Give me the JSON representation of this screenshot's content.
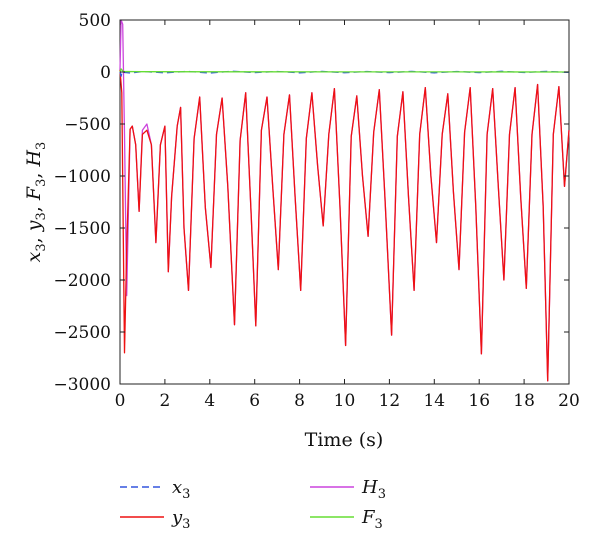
{
  "chart_data": {
    "type": "line",
    "title": "",
    "xlabel": "Time (s)",
    "ylabel_parts": {
      "vars": [
        "x",
        "y",
        "F",
        "H"
      ],
      "sub": "3"
    },
    "xlim": [
      0,
      20
    ],
    "ylim": [
      -3000,
      500
    ],
    "xticks": [
      0,
      2,
      4,
      6,
      8,
      10,
      12,
      14,
      16,
      18,
      20
    ],
    "yticks": [
      500,
      0,
      -500,
      -1000,
      -1500,
      -2000,
      -2500,
      -3000
    ],
    "grid": false,
    "legend_position": "bottom",
    "series": [
      {
        "name": "x",
        "sub": "3",
        "color": "#3355dd",
        "dash": "7,4",
        "points": [
          [
            0,
            0
          ],
          [
            0.05,
            -40
          ],
          [
            0.1,
            10
          ],
          [
            0.2,
            -5
          ],
          [
            0.5,
            -10
          ],
          [
            1,
            5
          ],
          [
            2,
            -8
          ],
          [
            3,
            6
          ],
          [
            4,
            -10
          ],
          [
            5,
            8
          ],
          [
            6,
            -6
          ],
          [
            7,
            5
          ],
          [
            8,
            -8
          ],
          [
            9,
            6
          ],
          [
            10,
            -7
          ],
          [
            11,
            5
          ],
          [
            12,
            -6
          ],
          [
            13,
            6
          ],
          [
            14,
            -8
          ],
          [
            15,
            5
          ],
          [
            16,
            -6
          ],
          [
            17,
            7
          ],
          [
            18,
            -5
          ],
          [
            19,
            6
          ],
          [
            20,
            -4
          ]
        ]
      },
      {
        "name": "y",
        "sub": "3",
        "color": "#ee1111",
        "dash": "",
        "points": [
          [
            0,
            20
          ],
          [
            0.08,
            -200
          ],
          [
            0.2,
            -2700
          ],
          [
            0.3,
            -1700
          ],
          [
            0.45,
            -550
          ],
          [
            0.55,
            -520
          ],
          [
            0.7,
            -700
          ],
          [
            0.85,
            -1340
          ],
          [
            1.0,
            -600
          ],
          [
            1.2,
            -560
          ],
          [
            1.4,
            -700
          ],
          [
            1.6,
            -1640
          ],
          [
            1.8,
            -700
          ],
          [
            2.0,
            -520
          ],
          [
            2.15,
            -1920
          ],
          [
            2.3,
            -1200
          ],
          [
            2.55,
            -520
          ],
          [
            2.7,
            -340
          ],
          [
            2.85,
            -1500
          ],
          [
            3.05,
            -2100
          ],
          [
            3.3,
            -640
          ],
          [
            3.55,
            -240
          ],
          [
            3.8,
            -1300
          ],
          [
            4.05,
            -1880
          ],
          [
            4.3,
            -600
          ],
          [
            4.55,
            -250
          ],
          [
            4.8,
            -1100
          ],
          [
            5.1,
            -2430
          ],
          [
            5.35,
            -660
          ],
          [
            5.6,
            -200
          ],
          [
            5.85,
            -1400
          ],
          [
            6.05,
            -2440
          ],
          [
            6.3,
            -560
          ],
          [
            6.55,
            -240
          ],
          [
            6.8,
            -1100
          ],
          [
            7.05,
            -1900
          ],
          [
            7.3,
            -600
          ],
          [
            7.55,
            -220
          ],
          [
            7.8,
            -1200
          ],
          [
            8.05,
            -2100
          ],
          [
            8.3,
            -640
          ],
          [
            8.55,
            -200
          ],
          [
            8.8,
            -900
          ],
          [
            9.05,
            -1480
          ],
          [
            9.3,
            -600
          ],
          [
            9.55,
            -160
          ],
          [
            9.8,
            -1300
          ],
          [
            10.05,
            -2630
          ],
          [
            10.3,
            -620
          ],
          [
            10.55,
            -230
          ],
          [
            10.8,
            -1000
          ],
          [
            11.05,
            -1580
          ],
          [
            11.3,
            -580
          ],
          [
            11.55,
            -170
          ],
          [
            11.8,
            -1200
          ],
          [
            12.1,
            -2530
          ],
          [
            12.35,
            -620
          ],
          [
            12.6,
            -190
          ],
          [
            12.85,
            -1200
          ],
          [
            13.1,
            -2100
          ],
          [
            13.35,
            -600
          ],
          [
            13.6,
            -150
          ],
          [
            13.85,
            -1000
          ],
          [
            14.1,
            -1640
          ],
          [
            14.35,
            -600
          ],
          [
            14.6,
            -210
          ],
          [
            14.85,
            -1150
          ],
          [
            15.1,
            -1900
          ],
          [
            15.35,
            -580
          ],
          [
            15.6,
            -150
          ],
          [
            15.85,
            -1300
          ],
          [
            16.1,
            -2710
          ],
          [
            16.35,
            -600
          ],
          [
            16.6,
            -160
          ],
          [
            16.85,
            -1100
          ],
          [
            17.1,
            -2000
          ],
          [
            17.35,
            -600
          ],
          [
            17.6,
            -150
          ],
          [
            17.85,
            -1200
          ],
          [
            18.1,
            -2080
          ],
          [
            18.35,
            -600
          ],
          [
            18.6,
            -120
          ],
          [
            18.85,
            -1300
          ],
          [
            19.05,
            -2970
          ],
          [
            19.3,
            -600
          ],
          [
            19.55,
            -140
          ],
          [
            19.8,
            -1100
          ],
          [
            20,
            -560
          ]
        ]
      },
      {
        "name": "H",
        "sub": "3",
        "color": "#cc44dd",
        "dash": "",
        "points": [
          [
            0,
            20
          ],
          [
            0.05,
            500
          ],
          [
            0.12,
            460
          ],
          [
            0.2,
            -600
          ],
          [
            0.3,
            -2150
          ],
          [
            0.45,
            -550
          ],
          [
            0.55,
            -520
          ],
          [
            0.7,
            -700
          ],
          [
            0.85,
            -1340
          ],
          [
            1.0,
            -560
          ],
          [
            1.2,
            -500
          ],
          [
            1.4,
            -700
          ],
          [
            1.6,
            -1640
          ],
          [
            1.8,
            -700
          ],
          [
            2.0,
            -520
          ],
          [
            2.15,
            -1920
          ],
          [
            2.3,
            -1200
          ],
          [
            2.55,
            -520
          ],
          [
            2.7,
            -340
          ],
          [
            2.85,
            -1500
          ],
          [
            3.05,
            -2100
          ],
          [
            3.3,
            -640
          ],
          [
            3.55,
            -240
          ],
          [
            3.8,
            -1300
          ],
          [
            4.05,
            -1880
          ],
          [
            4.3,
            -600
          ],
          [
            4.55,
            -250
          ],
          [
            4.8,
            -1100
          ],
          [
            5.1,
            -2430
          ],
          [
            5.35,
            -660
          ],
          [
            5.6,
            -200
          ],
          [
            5.85,
            -1400
          ],
          [
            6.05,
            -2440
          ],
          [
            6.3,
            -560
          ],
          [
            6.55,
            -240
          ],
          [
            6.8,
            -1100
          ],
          [
            7.05,
            -1900
          ],
          [
            7.3,
            -600
          ],
          [
            7.55,
            -220
          ],
          [
            7.8,
            -1200
          ],
          [
            8.05,
            -2100
          ],
          [
            8.3,
            -640
          ],
          [
            8.55,
            -200
          ],
          [
            8.8,
            -900
          ],
          [
            9.05,
            -1480
          ],
          [
            9.3,
            -600
          ],
          [
            9.55,
            -160
          ],
          [
            9.8,
            -1300
          ],
          [
            10.05,
            -2630
          ],
          [
            10.3,
            -620
          ],
          [
            10.55,
            -230
          ],
          [
            10.8,
            -1000
          ],
          [
            11.05,
            -1580
          ],
          [
            11.3,
            -580
          ],
          [
            11.55,
            -170
          ],
          [
            11.8,
            -1200
          ],
          [
            12.1,
            -2530
          ],
          [
            12.35,
            -620
          ],
          [
            12.6,
            -190
          ],
          [
            12.85,
            -1200
          ],
          [
            13.1,
            -2100
          ],
          [
            13.35,
            -600
          ],
          [
            13.6,
            -150
          ],
          [
            13.85,
            -1000
          ],
          [
            14.1,
            -1640
          ],
          [
            14.35,
            -600
          ],
          [
            14.6,
            -210
          ],
          [
            14.85,
            -1150
          ],
          [
            15.1,
            -1900
          ],
          [
            15.35,
            -580
          ],
          [
            15.6,
            -150
          ],
          [
            15.85,
            -1300
          ],
          [
            16.1,
            -2710
          ],
          [
            16.35,
            -600
          ],
          [
            16.6,
            -160
          ],
          [
            16.85,
            -1100
          ],
          [
            17.1,
            -2000
          ],
          [
            17.35,
            -600
          ],
          [
            17.6,
            -150
          ],
          [
            17.85,
            -1200
          ],
          [
            18.1,
            -2080
          ],
          [
            18.35,
            -600
          ],
          [
            18.6,
            -120
          ],
          [
            18.85,
            -1300
          ],
          [
            19.05,
            -2970
          ],
          [
            19.3,
            -600
          ],
          [
            19.55,
            -140
          ],
          [
            19.8,
            -1100
          ],
          [
            20,
            -560
          ]
        ]
      },
      {
        "name": "F",
        "sub": "3",
        "color": "#66dd33",
        "dash": "",
        "points": [
          [
            0,
            0
          ],
          [
            0.05,
            30
          ],
          [
            0.15,
            5
          ],
          [
            1,
            3
          ],
          [
            5,
            2
          ],
          [
            10,
            1
          ],
          [
            15,
            1
          ],
          [
            20,
            0
          ]
        ]
      }
    ],
    "legend_order": [
      "x",
      "y",
      "H",
      "F"
    ]
  }
}
